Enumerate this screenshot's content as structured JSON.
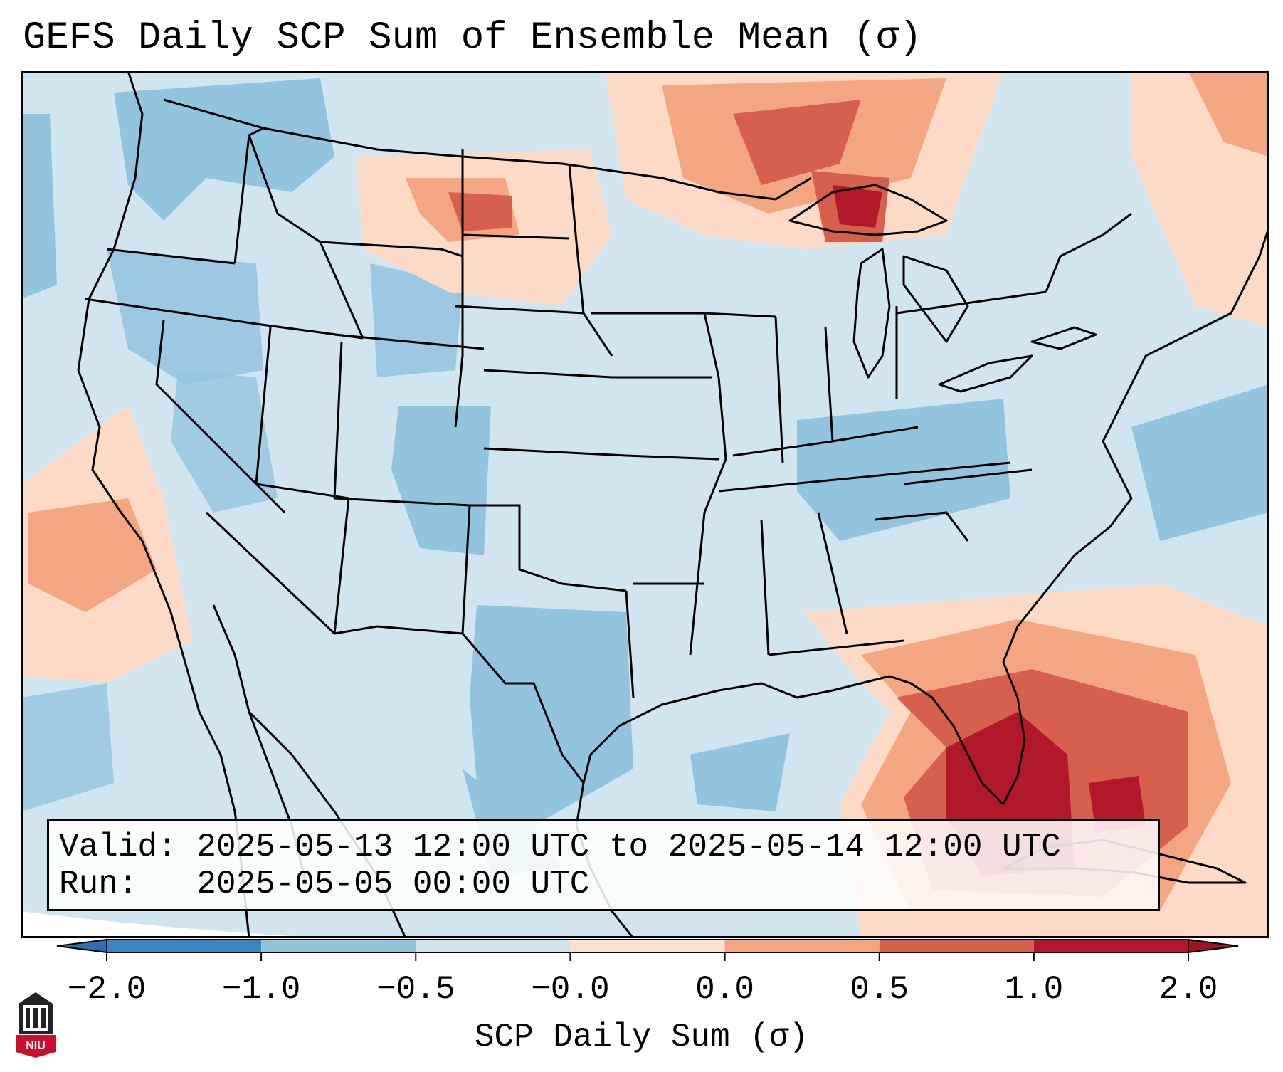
{
  "title": "GEFS Daily SCP Sum of Ensemble Mean (σ)",
  "info": {
    "valid_label": "Valid:",
    "valid_range": "2025-05-13 12:00 UTC to 2025-05-14 12:00 UTC",
    "run_label": "Run:",
    "run_time": "2025-05-05 00:00 UTC"
  },
  "colorbar": {
    "label": "SCP Daily Sum (σ)",
    "ticks": [
      "−2.0",
      "−1.0",
      "−0.5",
      "−0.0",
      "0.0",
      "0.5",
      "1.0",
      "2.0"
    ],
    "bins": [
      "#3a86c0",
      "#93c4de",
      "#d1e5f0",
      "#fce0d0",
      "#f4a582",
      "#d6604d",
      "#b2182b"
    ],
    "extend_low_color": "#2f6fad",
    "extend_high_color": "#a01327"
  },
  "logo": {
    "text": "NIU",
    "color": "#c8102e"
  },
  "map": {
    "background_color": "#d1e5f0",
    "outside_color": "#ffffff",
    "category_colors": {
      "neg_high": "#93c4de",
      "pos_low": "#fcdac6",
      "pos_mid": "#f4a582",
      "pos_high": "#d6604d",
      "pos_max": "#b2182b"
    }
  }
}
